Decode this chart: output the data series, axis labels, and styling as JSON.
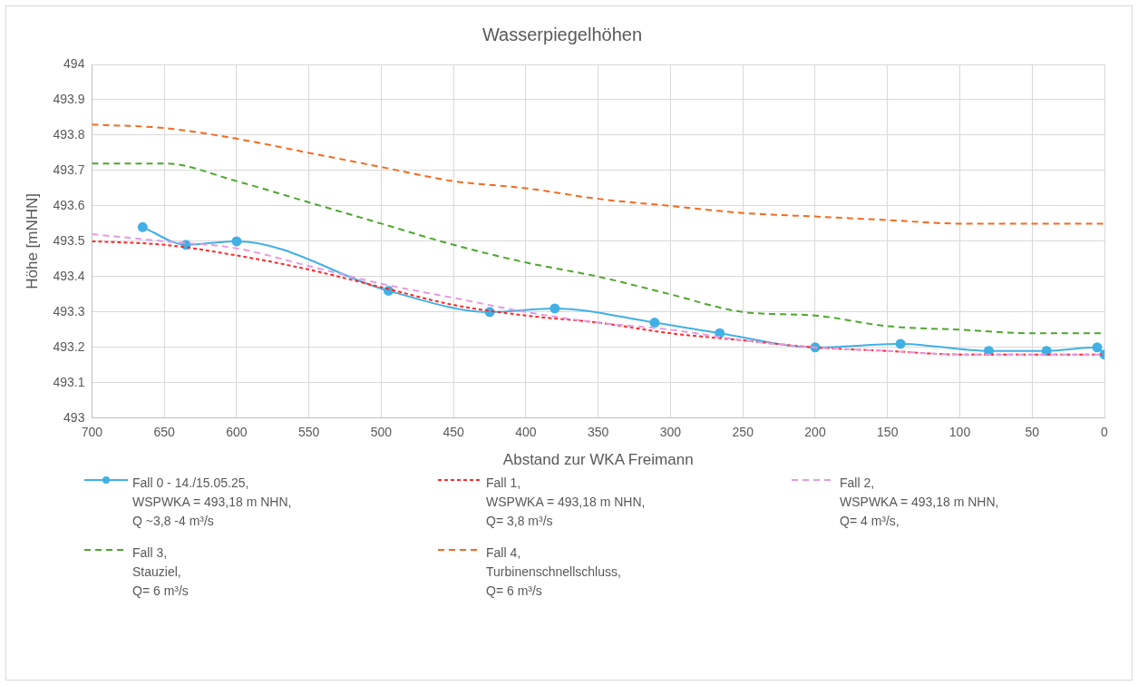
{
  "chart_data": {
    "type": "line",
    "title": "Wasserpiegelhöhen",
    "xlabel": "Abstand zur WKA Freimann",
    "ylabel": "Höhe [mNHN]",
    "xlim": [
      700,
      0
    ],
    "xticks": [
      700,
      650,
      600,
      550,
      500,
      450,
      400,
      350,
      300,
      250,
      200,
      150,
      100,
      50,
      0
    ],
    "ylim": [
      493,
      494
    ],
    "yticks": [
      493,
      493.1,
      493.2,
      493.3,
      493.4,
      493.5,
      493.6,
      493.7,
      493.8,
      493.9,
      494
    ],
    "grid": true,
    "legend": "bottom",
    "series": [
      {
        "name": "Fall 0 - 14./15.05.25,\nWSPWKA = 493,18 m NHN,\nQ ~3,8 -4 m³/s",
        "color": "#41b0e4",
        "marker": "circle",
        "line_style": "solid",
        "x": [
          665,
          635,
          600,
          495,
          425,
          380,
          311,
          266,
          200,
          141,
          80,
          40,
          5,
          0
        ],
        "values": [
          493.54,
          493.49,
          493.5,
          493.36,
          493.3,
          493.31,
          493.27,
          493.24,
          493.2,
          493.21,
          493.19,
          493.19,
          493.2,
          493.18
        ]
      },
      {
        "name": "Fall 1,\nWSPWKA = 493,18 m NHN,\nQ= 3,8 m³/s",
        "color": "#ff2a2a",
        "marker": "none",
        "line_style": "dotted",
        "x": [
          700,
          650,
          600,
          550,
          500,
          450,
          400,
          350,
          300,
          250,
          200,
          150,
          100,
          50,
          0
        ],
        "values": [
          493.5,
          493.49,
          493.46,
          493.42,
          493.37,
          493.32,
          493.29,
          493.27,
          493.24,
          493.22,
          493.2,
          493.19,
          493.18,
          493.18,
          493.18
        ]
      },
      {
        "name": "Fall 2,\nWSPWKA = 493,18 m NHN,\nQ= 4 m³/s,",
        "color": "#e69be0",
        "marker": "none",
        "line_style": "dashed",
        "x": [
          700,
          650,
          600,
          550,
          500,
          450,
          400,
          350,
          300,
          250,
          200,
          150,
          100,
          50,
          0
        ],
        "values": [
          493.52,
          493.5,
          493.48,
          493.43,
          493.38,
          493.34,
          493.3,
          493.27,
          493.25,
          493.22,
          493.2,
          493.19,
          493.18,
          493.18,
          493.18
        ]
      },
      {
        "name": "Fall 3,\nStauziel,\nQ= 6 m³/s",
        "color": "#4ea72e",
        "marker": "none",
        "line_style": "dashed",
        "x": [
          700,
          650,
          600,
          550,
          500,
          450,
          400,
          350,
          300,
          250,
          200,
          150,
          100,
          50,
          0
        ],
        "values": [
          493.72,
          493.72,
          493.67,
          493.61,
          493.55,
          493.49,
          493.44,
          493.4,
          493.35,
          493.3,
          493.29,
          493.26,
          493.25,
          493.24,
          493.24
        ]
      },
      {
        "name": "Fall 4,\nTurbinenschnellschluss,\nQ= 6 m³/s",
        "color": "#f26b21",
        "marker": "none",
        "line_style": "dashed",
        "x": [
          700,
          650,
          600,
          550,
          500,
          450,
          400,
          350,
          300,
          250,
          200,
          150,
          100,
          50,
          0
        ],
        "values": [
          493.83,
          493.82,
          493.79,
          493.75,
          493.71,
          493.67,
          493.65,
          493.62,
          493.6,
          493.58,
          493.57,
          493.56,
          493.55,
          493.55,
          493.55
        ]
      }
    ]
  }
}
